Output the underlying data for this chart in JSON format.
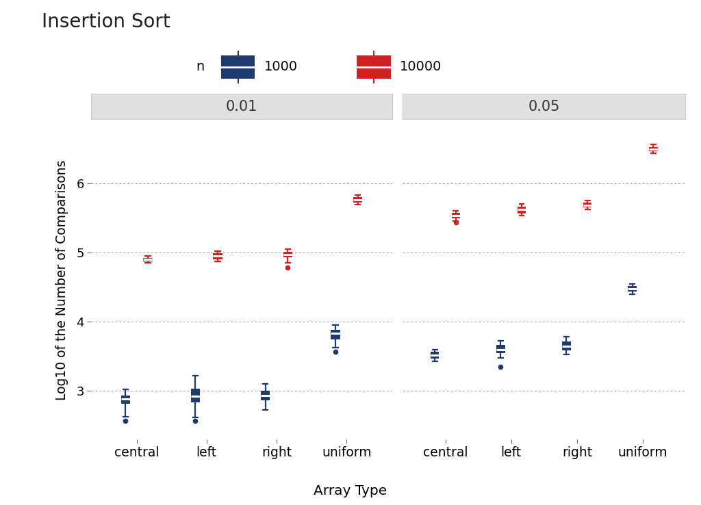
{
  "title": "Insertion Sort",
  "ylabel": "Log10 of the Number of Comparisons",
  "xlabel": "Array Type",
  "panels": [
    "0.01",
    "0.05"
  ],
  "categories": [
    "central",
    "left",
    "right",
    "uniform"
  ],
  "color_1000": "#1e3a6e",
  "color_10000": "#cc2222",
  "background_color": "#ffffff",
  "panel_bg_color": "#e0e0e0",
  "ylim": [
    2.3,
    6.9
  ],
  "yticks": [
    3,
    4,
    5,
    6
  ],
  "boxplots": {
    "0.01": {
      "central": {
        "1000": {
          "q1": 2.82,
          "median": 2.88,
          "q3": 2.93,
          "wlo": 2.63,
          "whi": 3.02,
          "out": [
            2.57
          ]
        },
        "10000": {
          "q1": 4.87,
          "median": 4.9,
          "q3": 4.92,
          "wlo": 4.85,
          "whi": 4.95,
          "out": []
        }
      },
      "left": {
        "1000": {
          "q1": 2.83,
          "median": 2.92,
          "q3": 3.03,
          "wlo": 2.62,
          "whi": 3.22,
          "out": [
            2.57
          ]
        },
        "10000": {
          "q1": 4.9,
          "median": 4.95,
          "q3": 4.99,
          "wlo": 4.87,
          "whi": 5.02,
          "out": []
        }
      },
      "right": {
        "1000": {
          "q1": 2.86,
          "median": 2.93,
          "q3": 3.0,
          "wlo": 2.73,
          "whi": 3.1,
          "out": []
        },
        "10000": {
          "q1": 4.93,
          "median": 4.97,
          "q3": 5.01,
          "wlo": 4.85,
          "whi": 5.05,
          "out": [
            4.78
          ]
        }
      },
      "uniform": {
        "1000": {
          "q1": 3.75,
          "median": 3.83,
          "q3": 3.88,
          "wlo": 3.63,
          "whi": 3.95,
          "out": [
            3.57
          ]
        },
        "10000": {
          "q1": 5.72,
          "median": 5.76,
          "q3": 5.8,
          "wlo": 5.69,
          "whi": 5.83,
          "out": []
        }
      }
    },
    "0.05": {
      "central": {
        "1000": {
          "q1": 3.47,
          "median": 3.52,
          "q3": 3.57,
          "wlo": 3.43,
          "whi": 3.6,
          "out": []
        },
        "10000": {
          "q1": 5.5,
          "median": 5.54,
          "q3": 5.58,
          "wlo": 5.46,
          "whi": 5.61,
          "out": [
            5.44
          ]
        }
      },
      "left": {
        "1000": {
          "q1": 3.55,
          "median": 3.6,
          "q3": 3.67,
          "wlo": 3.48,
          "whi": 3.73,
          "out": [
            3.35
          ]
        },
        "10000": {
          "q1": 5.57,
          "median": 5.62,
          "q3": 5.66,
          "wlo": 5.54,
          "whi": 5.7,
          "out": []
        }
      },
      "right": {
        "1000": {
          "q1": 3.59,
          "median": 3.65,
          "q3": 3.72,
          "wlo": 3.53,
          "whi": 3.78,
          "out": []
        },
        "10000": {
          "q1": 5.65,
          "median": 5.68,
          "q3": 5.72,
          "wlo": 5.62,
          "whi": 5.75,
          "out": []
        }
      },
      "uniform": {
        "1000": {
          "q1": 4.44,
          "median": 4.48,
          "q3": 4.52,
          "wlo": 4.4,
          "whi": 4.55,
          "out": []
        },
        "10000": {
          "q1": 6.47,
          "median": 6.5,
          "q3": 6.53,
          "wlo": 6.44,
          "whi": 6.56,
          "out": []
        }
      }
    }
  }
}
